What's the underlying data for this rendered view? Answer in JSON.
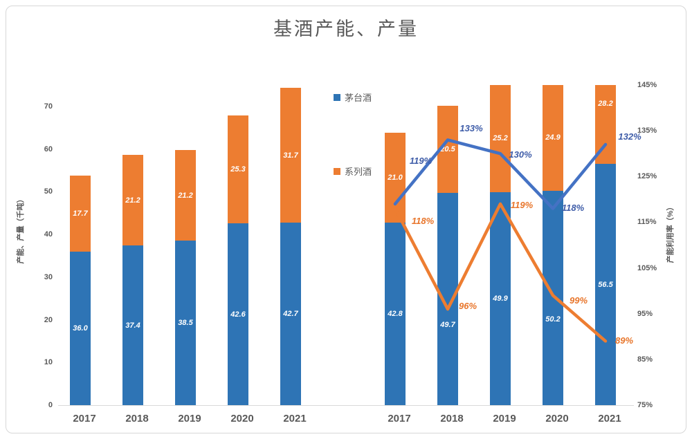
{
  "title": "基酒产能、产量",
  "colors": {
    "moutai_bar": "#2E74B5",
    "series_bar": "#ED7D31",
    "blue_line": "#4472C4",
    "orange_line": "#ED7D31",
    "blue_label": "#3E5CA8",
    "orange_label": "#E8762C",
    "axis_text": "#595959",
    "gridline": "#D9D9D9"
  },
  "legend": {
    "items": [
      {
        "label": "茅台酒",
        "color": "#2E74B5"
      },
      {
        "label": "系列酒",
        "color": "#ED7D31"
      }
    ]
  },
  "left_axis": {
    "title": "产能、产量（千吨）",
    "values": [
      0,
      10,
      20,
      30,
      40,
      50,
      60,
      70
    ],
    "ticks": [
      "0",
      "10",
      "20",
      "30",
      "40",
      "50",
      "60",
      "70"
    ]
  },
  "right_axis": {
    "title": "产能利用率（%）",
    "values": [
      75,
      85,
      95,
      105,
      115,
      125,
      135,
      145
    ],
    "ticks": [
      "75%",
      "85%",
      "95%",
      "105%",
      "115%",
      "125%",
      "135%",
      "145%"
    ]
  },
  "chart_data": {
    "type": "bar+line combo, stacked bars with two bar clusters and two overlay lines on secondary axis",
    "title": "基酒产能、产量",
    "categories": [
      "2017",
      "2018",
      "2019",
      "2020",
      "2021"
    ],
    "bar_groups": [
      {
        "id": "capacity-group-left",
        "series": [
          {
            "name": "茅台酒",
            "color": "#2E74B5",
            "values": [
              36.0,
              37.4,
              38.5,
              42.6,
              42.7
            ]
          },
          {
            "name": "系列酒",
            "color": "#ED7D31",
            "values": [
              17.7,
              21.2,
              21.2,
              25.3,
              31.7
            ]
          }
        ]
      },
      {
        "id": "output-group-right",
        "series": [
          {
            "name": "茅台酒",
            "color": "#2E74B5",
            "values": [
              42.8,
              49.7,
              49.9,
              50.2,
              56.5
            ]
          },
          {
            "name": "系列酒",
            "color": "#ED7D31",
            "values": [
              21.0,
              20.5,
              25.2,
              24.9,
              28.2
            ]
          }
        ]
      }
    ],
    "line_series": [
      {
        "id": "line-blue",
        "color": "#4472C4",
        "axis": "right",
        "values": [
          119,
          133,
          130,
          118,
          132
        ],
        "labels": [
          "119%",
          "133%",
          "130%",
          "118%",
          "132%"
        ]
      },
      {
        "id": "line-orange",
        "color": "#ED7D31",
        "axis": "right",
        "values": [
          118,
          96,
          119,
          99,
          89
        ],
        "labels": [
          "118%",
          "96%",
          "119%",
          "99%",
          "89%"
        ]
      }
    ],
    "ylabel": "产能、产量（千吨）",
    "y2label": "产能利用率（%）",
    "ylim": [
      0,
      75
    ],
    "y2lim": [
      75,
      145
    ],
    "grid": false,
    "legend_position": "mid-chart, vertical, left of right cluster"
  }
}
